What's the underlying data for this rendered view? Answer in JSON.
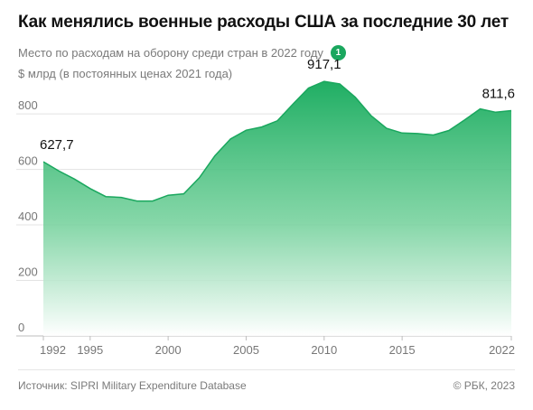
{
  "header": {
    "title": "Как менялись военные расходы США за последние 30 лет",
    "subtitle": "Место по расходам на оборону среди стран в 2022 году",
    "rank": "1",
    "units": "$ млрд (в постоянных ценах 2021 года)"
  },
  "footer": {
    "source": "Источник: SIPRI Military Expenditure Database",
    "copyright": "© РБК, 2023"
  },
  "colors": {
    "accent": "#1aa75e",
    "area_top": "#1fae63",
    "area_bottom": "#ffffff"
  },
  "chart_data": {
    "type": "area",
    "x": [
      1992,
      1993,
      1994,
      1995,
      1996,
      1997,
      1998,
      1999,
      2000,
      2001,
      2002,
      2003,
      2004,
      2005,
      2006,
      2007,
      2008,
      2009,
      2010,
      2011,
      2012,
      2013,
      2014,
      2015,
      2016,
      2017,
      2018,
      2019,
      2020,
      2021,
      2022
    ],
    "values": [
      627.7,
      594,
      565,
      531,
      502,
      499,
      486,
      486,
      507,
      512,
      570,
      649,
      710,
      741,
      753,
      775,
      835,
      893,
      917.1,
      908,
      860,
      794,
      748,
      731,
      729,
      724,
      740,
      778,
      818,
      806,
      811.6
    ],
    "xlim": [
      1992,
      2022
    ],
    "ylim": [
      0,
      950
    ],
    "x_ticks": [
      1992,
      1995,
      2000,
      2005,
      2010,
      2015,
      2022
    ],
    "x_tick_labels": [
      "1992",
      "1995",
      "2000",
      "2005",
      "2010",
      "2015",
      "2022"
    ],
    "y_ticks": [
      0,
      200,
      400,
      600,
      800
    ],
    "y_tick_labels": [
      "0",
      "200",
      "400",
      "600",
      "800"
    ],
    "grid": "horizontal",
    "annotations": [
      {
        "x": 1992,
        "label": "627,7"
      },
      {
        "x": 2010,
        "label": "917,1"
      },
      {
        "x": 2022,
        "label": "811,6"
      }
    ]
  }
}
